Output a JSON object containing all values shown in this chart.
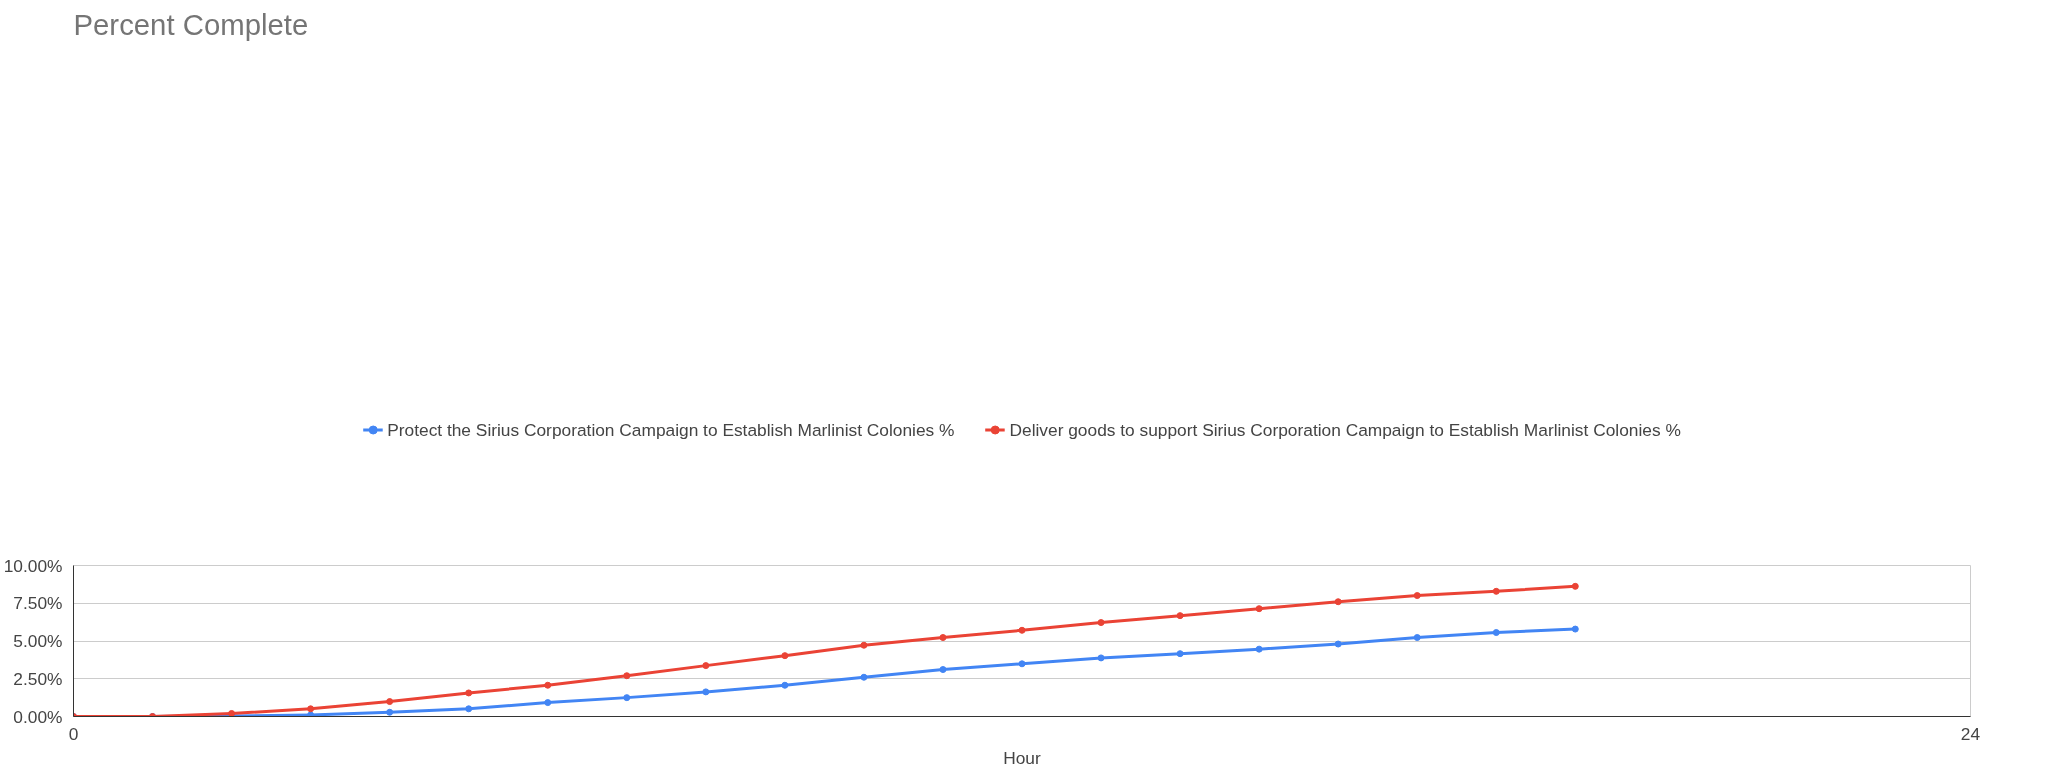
{
  "chart_data": {
    "type": "line",
    "title": "Percent Complete",
    "xlabel": "Hour",
    "x": [
      0,
      1,
      2,
      3,
      4,
      5,
      6,
      7,
      8,
      9,
      10,
      11,
      12,
      13,
      14,
      15,
      16,
      17,
      18,
      19
    ],
    "series": [
      {
        "name": "Protect the Sirius Corporation Campaign to Establish Marlinist Colonies %",
        "color": "#4285f4",
        "values": [
          0,
          0,
          0.03,
          0.1,
          0.28,
          0.51,
          0.92,
          1.25,
          1.63,
          2.07,
          2.6,
          3.11,
          3.49,
          3.88,
          4.16,
          4.46,
          4.8,
          5.23,
          5.56,
          5.79
        ]
      },
      {
        "name": "Deliver goods to support Sirius Corporation Campaign to Establish Marlinist Colonies %",
        "color": "#ea4335",
        "values": [
          0,
          0,
          0.2,
          0.51,
          0.99,
          1.56,
          2.07,
          2.7,
          3.37,
          4.03,
          4.72,
          5.23,
          5.71,
          6.22,
          6.68,
          7.14,
          7.6,
          8.01,
          8.29,
          8.62
        ]
      }
    ],
    "xlim": [
      0,
      24
    ],
    "xticks": [
      0,
      24
    ],
    "ylim": [
      0,
      10
    ],
    "yticks": [
      {
        "value": 0,
        "label": "0.00%"
      },
      {
        "value": 2.5,
        "label": "2.50%"
      },
      {
        "value": 5,
        "label": "5.00%"
      },
      {
        "value": 7.5,
        "label": "7.50%"
      },
      {
        "value": 10,
        "label": "10.00%"
      }
    ],
    "grid": "y",
    "legend": "top",
    "marker": "circle",
    "line_style": "solid"
  }
}
